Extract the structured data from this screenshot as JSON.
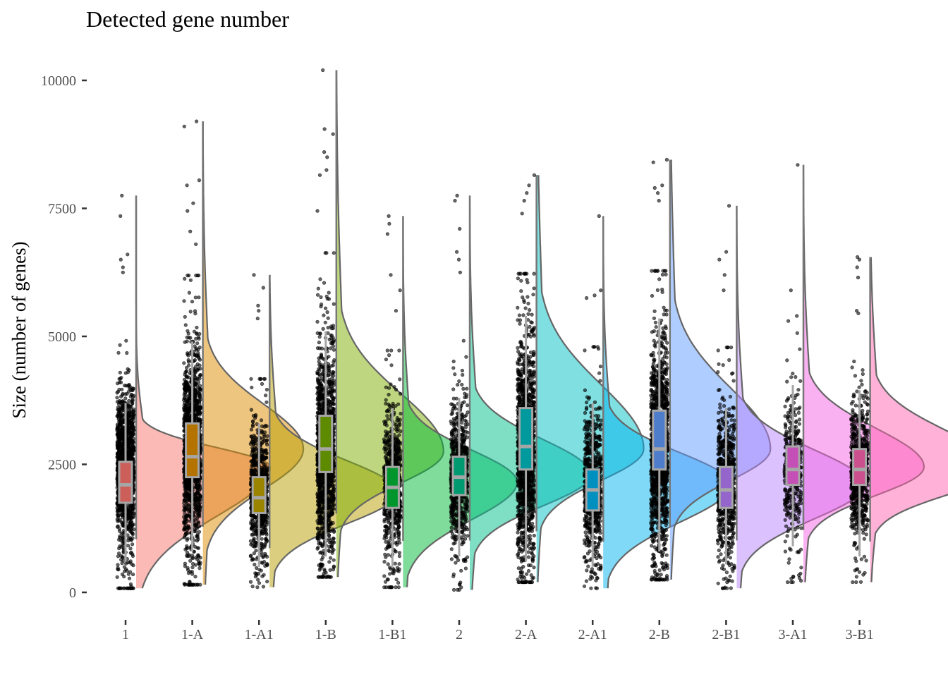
{
  "chart_data": {
    "type": "raincloud",
    "title": "Detected gene number",
    "xlabel": "",
    "ylabel": "Size (number of genes)",
    "ylim": [
      -800,
      10300
    ],
    "y_ticks": [
      0,
      2500,
      5000,
      7500,
      10000
    ],
    "y_tick_labels": [
      "0",
      "2500",
      "5000",
      "7500",
      "10000"
    ],
    "grid": false,
    "legend": "none",
    "categories": [
      "1",
      "1-A",
      "1-A1",
      "1-B",
      "1-B1",
      "2",
      "2-A",
      "2-A1",
      "2-B",
      "2-B1",
      "3-A1",
      "3-B1"
    ],
    "groups": [
      {
        "name": "1",
        "color": "#F8766D",
        "box_color": "#CD5F5A",
        "min": 80,
        "max": 7750,
        "q1": 1750,
        "median": 2100,
        "q3": 2550,
        "whisker_low": 600,
        "whisker_high": 3700,
        "mode": 2450,
        "density_peak": 1.0,
        "n_points": "dense",
        "outliers_high": [
          6600,
          6500,
          6350,
          6250,
          7350,
          7750
        ]
      },
      {
        "name": "1-A",
        "color": "#DE8C00",
        "box_color": "#B47300",
        "min": 150,
        "max": 9200,
        "q1": 2250,
        "median": 2650,
        "q3": 3300,
        "whisker_low": 800,
        "whisker_high": 4900,
        "mode": 2800,
        "density_peak": 0.75,
        "n_points": "dense",
        "outliers_high": [
          9200,
          9100,
          8050,
          7950,
          7600,
          7450,
          7050,
          6800
        ]
      },
      {
        "name": "1-A1",
        "color": "#B79F00",
        "box_color": "#9A8400",
        "min": 100,
        "max": 6200,
        "q1": 1550,
        "median": 1850,
        "q3": 2250,
        "whisker_low": 500,
        "whisker_high": 3300,
        "mode": 1950,
        "density_peak": 0.95,
        "n_points": "medium",
        "outliers_high": [
          6200,
          5950,
          5600,
          5500,
          5350
        ]
      },
      {
        "name": "1-B",
        "color": "#7CAE00",
        "box_color": "#5E8A00",
        "min": 300,
        "max": 10200,
        "q1": 2350,
        "median": 2800,
        "q3": 3450,
        "whisker_low": 700,
        "whisker_high": 5100,
        "mode": 2750,
        "density_peak": 0.8,
        "n_points": "dense",
        "outliers_high": [
          10200,
          9050,
          8950,
          8600,
          8500,
          8250,
          8150,
          7450
        ]
      },
      {
        "name": "1-B1",
        "color": "#00BA38",
        "box_color": "#00962D",
        "min": 100,
        "max": 7350,
        "q1": 1650,
        "median": 2050,
        "q3": 2450,
        "whisker_low": 500,
        "whisker_high": 3600,
        "mode": 2150,
        "density_peak": 0.85,
        "n_points": "medium",
        "outliers_high": [
          7350,
          7200,
          7000,
          6200,
          5900,
          5500
        ]
      },
      {
        "name": "2",
        "color": "#00C08B",
        "box_color": "#009A70",
        "min": 50,
        "max": 7750,
        "q1": 1900,
        "median": 2250,
        "q3": 2650,
        "whisker_low": 700,
        "whisker_high": 3800,
        "mode": 2300,
        "density_peak": 0.9,
        "n_points": "medium",
        "outliers_high": [
          7750,
          7650,
          7100,
          6650,
          6500,
          6250
        ]
      },
      {
        "name": "2-A",
        "color": "#00BFC4",
        "box_color": "#009A9E",
        "min": 200,
        "max": 8150,
        "q1": 2400,
        "median": 2850,
        "q3": 3600,
        "whisker_low": 600,
        "whisker_high": 5400,
        "mode": 2800,
        "density_peak": 0.8,
        "n_points": "dense",
        "outliers_high": [
          8150,
          7950,
          7800,
          7650,
          7400
        ]
      },
      {
        "name": "2-A1",
        "color": "#00B4F0",
        "box_color": "#0090C0",
        "min": 80,
        "max": 7350,
        "q1": 1600,
        "median": 2000,
        "q3": 2400,
        "whisker_low": 500,
        "whisker_high": 3700,
        "mode": 2100,
        "density_peak": 0.95,
        "n_points": "medium",
        "outliers_high": [
          7350,
          5900,
          5800,
          5750
        ]
      },
      {
        "name": "2-B",
        "color": "#619CFF",
        "box_color": "#4E7DCC",
        "min": 250,
        "max": 8450,
        "q1": 2400,
        "median": 2800,
        "q3": 3550,
        "whisker_low": 800,
        "whisker_high": 5350,
        "mode": 2800,
        "density_peak": 0.75,
        "n_points": "dense",
        "outliers_high": [
          8450,
          8400,
          7950,
          7900,
          7800,
          7650
        ]
      },
      {
        "name": "2-B1",
        "color": "#B983FF",
        "box_color": "#9466CC",
        "min": 80,
        "max": 7550,
        "q1": 1650,
        "median": 2000,
        "q3": 2450,
        "whisker_low": 550,
        "whisker_high": 3600,
        "mode": 2100,
        "density_peak": 0.95,
        "n_points": "medium",
        "outliers_high": [
          7550,
          6650,
          6500,
          6200,
          5900
        ]
      },
      {
        "name": "3-A1",
        "color": "#F564E3",
        "box_color": "#C44FB6",
        "min": 200,
        "max": 8350,
        "q1": 2100,
        "median": 2400,
        "q3": 2850,
        "whisker_low": 900,
        "whisker_high": 4050,
        "mode": 2450,
        "density_peak": 0.9,
        "n_points": "sparse",
        "outliers_high": [
          8350,
          5900,
          5400,
          5300
        ]
      },
      {
        "name": "3-B1",
        "color": "#FF64B0",
        "box_color": "#CC508D",
        "min": 200,
        "max": 6550,
        "q1": 2100,
        "median": 2400,
        "q3": 2800,
        "whisker_low": 700,
        "whisker_high": 3950,
        "mode": 2400,
        "density_peak": 0.95,
        "n_points": "medium",
        "outliers_high": [
          6550,
          6500,
          6350,
          6150,
          5500,
          5450
        ]
      }
    ]
  }
}
